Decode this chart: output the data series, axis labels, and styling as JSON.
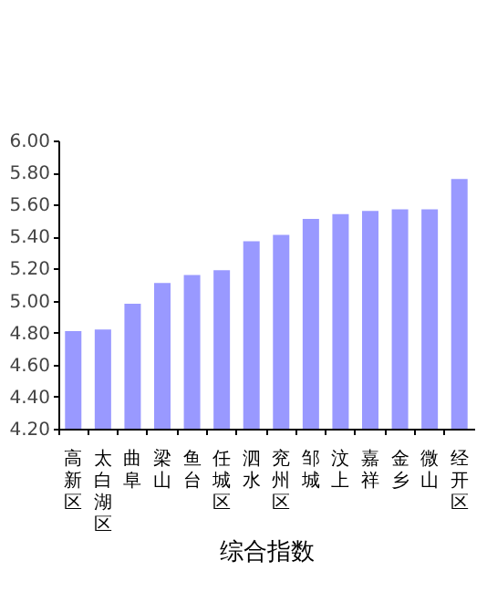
{
  "chart_data": {
    "type": "bar",
    "xlabel": "综合指数",
    "categories": [
      "高新区",
      "太白湖区",
      "曲阜",
      "梁山",
      "鱼台",
      "任城区",
      "泗水",
      "兖州区",
      "邹城",
      "汶上",
      "嘉祥",
      "金乡",
      "微山",
      "经开区"
    ],
    "values": [
      4.81,
      4.82,
      4.98,
      5.11,
      5.16,
      5.19,
      5.37,
      5.41,
      5.51,
      5.54,
      5.56,
      5.57,
      5.57,
      5.76
    ],
    "color": "#9999ff",
    "ylim": [
      4.2,
      6.0
    ],
    "yticks": [
      {
        "value": 4.2,
        "label": "4.20"
      },
      {
        "value": 4.4,
        "label": "4.40"
      },
      {
        "value": 4.6,
        "label": "4.60"
      },
      {
        "value": 4.8,
        "label": "4.80"
      },
      {
        "value": 5.0,
        "label": "5.00"
      },
      {
        "value": 5.2,
        "label": "5.20"
      },
      {
        "value": 5.4,
        "label": "5.40"
      },
      {
        "value": 5.6,
        "label": "5.60"
      },
      {
        "value": 5.8,
        "label": "5.80"
      },
      {
        "value": 6.0,
        "label": "6.00"
      }
    ],
    "grid": false
  }
}
